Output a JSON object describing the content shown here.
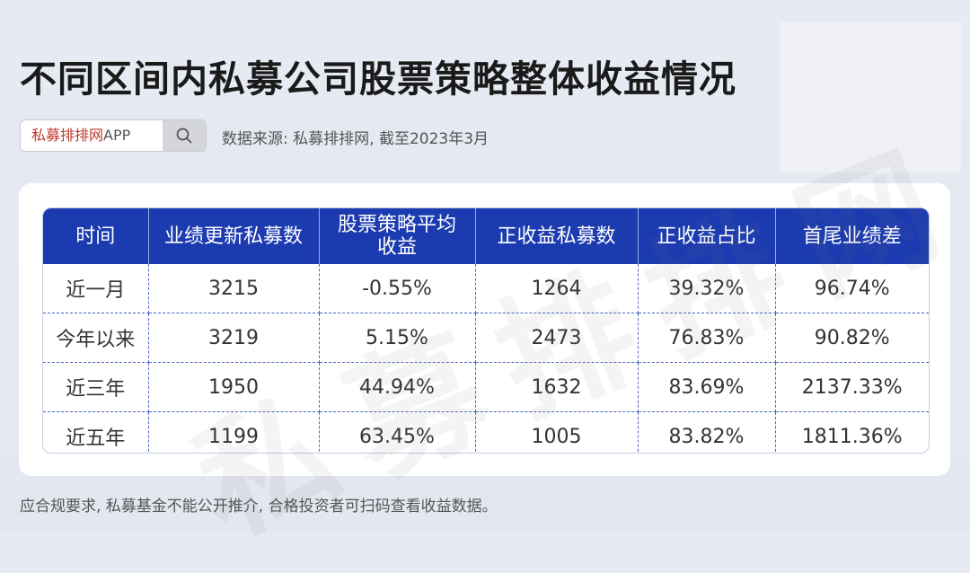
{
  "title": "不同区间内私募公司股票策略整体收益情况",
  "search": {
    "brand": "私募排排网",
    "app": "APP"
  },
  "source": "数据来源: 私募排排网, 截至2023年3月",
  "table": {
    "headers": [
      "时间",
      "业绩更新私募数",
      "股票策略平均\n收益",
      "正收益私募数",
      "正收益占比",
      "首尾业绩差"
    ],
    "rows": [
      [
        "近一月",
        "3215",
        "-0.55%",
        "1264",
        "39.32%",
        "96.74%"
      ],
      [
        "今年以来",
        "3219",
        "5.15%",
        "2473",
        "76.83%",
        "90.82%"
      ],
      [
        "近三年",
        "1950",
        "44.94%",
        "1632",
        "83.69%",
        "2137.33%"
      ],
      [
        "近五年",
        "1199",
        "63.45%",
        "1005",
        "83.82%",
        "1811.36%"
      ]
    ]
  },
  "watermark": "私募排排网",
  "footer": "应合规要求, 私募基金不能公开推介, 合格投资者可扫码查看收益数据。",
  "colors": {
    "header_bg": "#1c3bb0",
    "brand_red": "#c0392b"
  }
}
